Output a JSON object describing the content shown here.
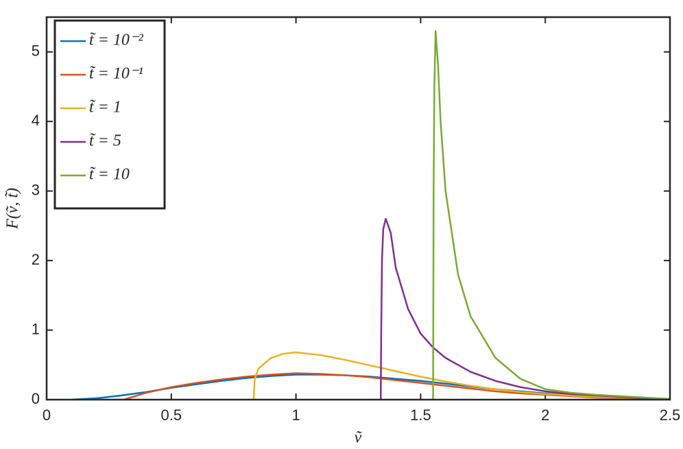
{
  "chart_data": {
    "type": "line",
    "xlabel": "ṽ",
    "ylabel": "F(ṽ, t̃)",
    "xlim": [
      0,
      2.5
    ],
    "ylim": [
      0,
      5.5
    ],
    "xticks": [
      0,
      0.5,
      1,
      1.5,
      2,
      2.5
    ],
    "yticks": [
      0,
      1,
      2,
      3,
      4,
      5
    ],
    "grid": false,
    "legend_position": "upper left",
    "series": [
      {
        "name": "t̃ = 10⁻²",
        "color": "#0072bd",
        "x": [
          0.1,
          0.2,
          0.3,
          0.4,
          0.5,
          0.6,
          0.7,
          0.8,
          0.9,
          1.0,
          1.1,
          1.2,
          1.3,
          1.4,
          1.5,
          1.6,
          1.7,
          1.8,
          1.9,
          2.0,
          2.1,
          2.2,
          2.3,
          2.4,
          2.5
        ],
        "values": [
          0,
          0.02,
          0.06,
          0.11,
          0.17,
          0.22,
          0.27,
          0.31,
          0.34,
          0.36,
          0.36,
          0.35,
          0.33,
          0.3,
          0.27,
          0.23,
          0.19,
          0.15,
          0.12,
          0.09,
          0.06,
          0.04,
          0.03,
          0.02,
          0.01
        ]
      },
      {
        "name": "t̃ = 10⁻¹",
        "color": "#d95319",
        "x": [
          0.31,
          0.4,
          0.5,
          0.6,
          0.7,
          0.8,
          0.9,
          1.0,
          1.1,
          1.2,
          1.3,
          1.4,
          1.5,
          1.6,
          1.7,
          1.8,
          1.9,
          2.0,
          2.1,
          2.2,
          2.3,
          2.4,
          2.5
        ],
        "values": [
          0,
          0.1,
          0.18,
          0.24,
          0.29,
          0.33,
          0.36,
          0.38,
          0.37,
          0.35,
          0.32,
          0.28,
          0.24,
          0.2,
          0.16,
          0.12,
          0.09,
          0.07,
          0.05,
          0.03,
          0.02,
          0.01,
          0.01
        ]
      },
      {
        "name": "t̃ = 1",
        "color": "#edb120",
        "x": [
          0.83,
          0.835,
          0.85,
          0.9,
          0.95,
          1.0,
          1.1,
          1.2,
          1.3,
          1.4,
          1.5,
          1.6,
          1.7,
          1.8,
          1.9,
          2.0,
          2.1,
          2.2,
          2.3,
          2.4,
          2.5
        ],
        "values": [
          0,
          0.3,
          0.45,
          0.6,
          0.66,
          0.68,
          0.64,
          0.57,
          0.49,
          0.41,
          0.33,
          0.26,
          0.2,
          0.15,
          0.11,
          0.08,
          0.06,
          0.04,
          0.03,
          0.02,
          0.01
        ]
      },
      {
        "name": "t̃ = 5",
        "color": "#7e2f8e",
        "x": [
          1.34,
          1.342,
          1.345,
          1.35,
          1.36,
          1.38,
          1.4,
          1.45,
          1.5,
          1.55,
          1.6,
          1.7,
          1.8,
          1.9,
          2.0,
          2.1,
          2.2,
          2.3,
          2.4,
          2.5
        ],
        "values": [
          0,
          1.0,
          2.0,
          2.45,
          2.6,
          2.4,
          1.9,
          1.3,
          0.95,
          0.75,
          0.6,
          0.4,
          0.27,
          0.18,
          0.12,
          0.08,
          0.06,
          0.04,
          0.02,
          0.01
        ]
      },
      {
        "name": "t̃ = 10",
        "color": "#77ac30",
        "x": [
          1.55,
          1.552,
          1.555,
          1.56,
          1.57,
          1.58,
          1.6,
          1.65,
          1.7,
          1.8,
          1.9,
          2.0,
          2.1,
          2.2,
          2.3,
          2.4,
          2.5
        ],
        "values": [
          0,
          3.0,
          4.5,
          5.3,
          4.8,
          4.0,
          3.0,
          1.8,
          1.2,
          0.6,
          0.3,
          0.15,
          0.1,
          0.07,
          0.05,
          0.03,
          0.01
        ]
      }
    ]
  }
}
